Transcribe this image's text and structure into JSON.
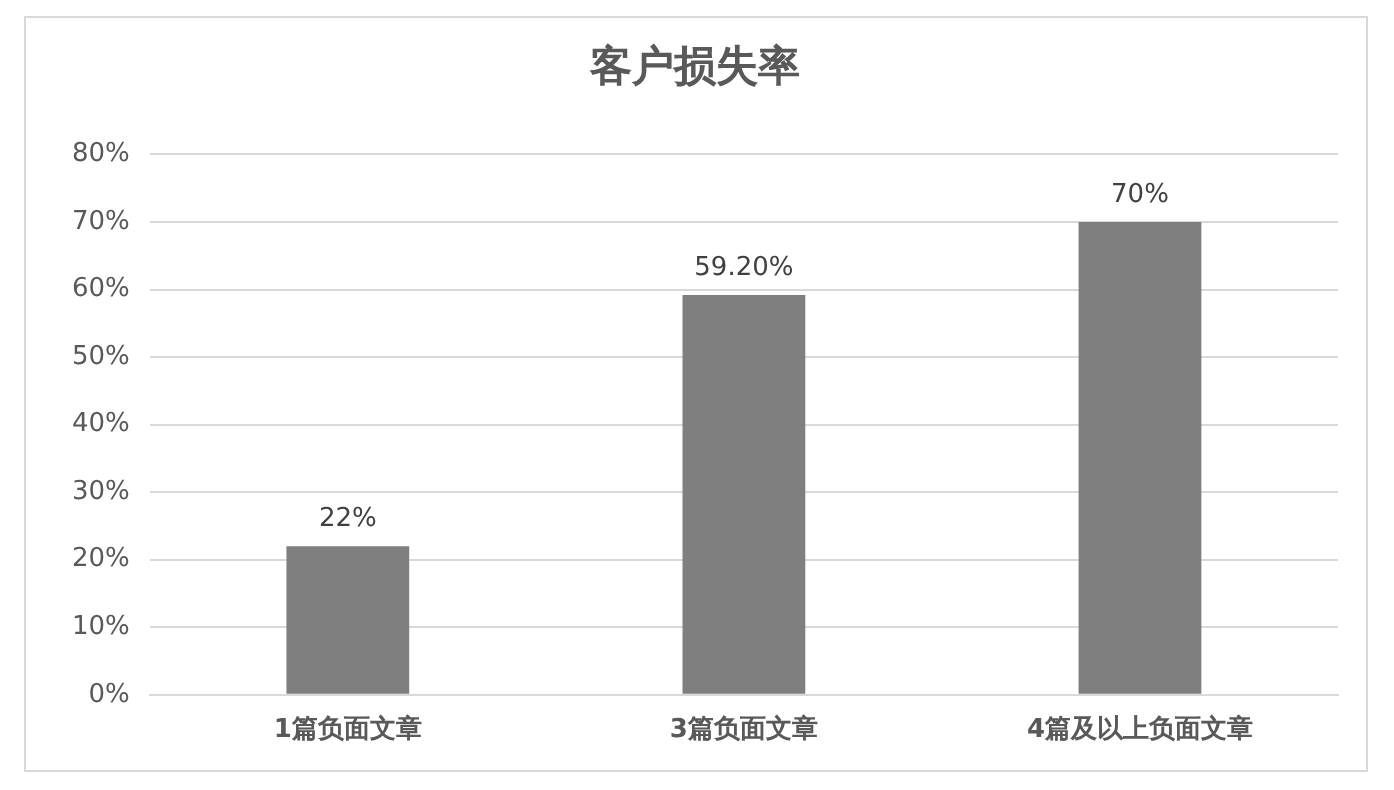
{
  "chart_data": {
    "type": "bar",
    "title": "客户损失率",
    "categories": [
      "1篇负面文章",
      "3篇负面文章",
      "4篇及以上负面文章"
    ],
    "values": [
      22,
      59.2,
      70
    ],
    "color": "#7f7f7f",
    "value_labels": [
      "22%",
      "59.20%",
      "70%"
    ],
    "ylim": [
      0,
      80
    ],
    "yticks": [
      {
        "value": 0,
        "label": "0%"
      },
      {
        "value": 10,
        "label": "10%"
      },
      {
        "value": 20,
        "label": "20%"
      },
      {
        "value": 30,
        "label": "30%"
      },
      {
        "value": 40,
        "label": "40%"
      },
      {
        "value": 50,
        "label": "50%"
      },
      {
        "value": 60,
        "label": "60%"
      },
      {
        "value": 70,
        "label": "70%"
      },
      {
        "value": 80,
        "label": "80%"
      }
    ],
    "grid": "y",
    "legend": false
  }
}
